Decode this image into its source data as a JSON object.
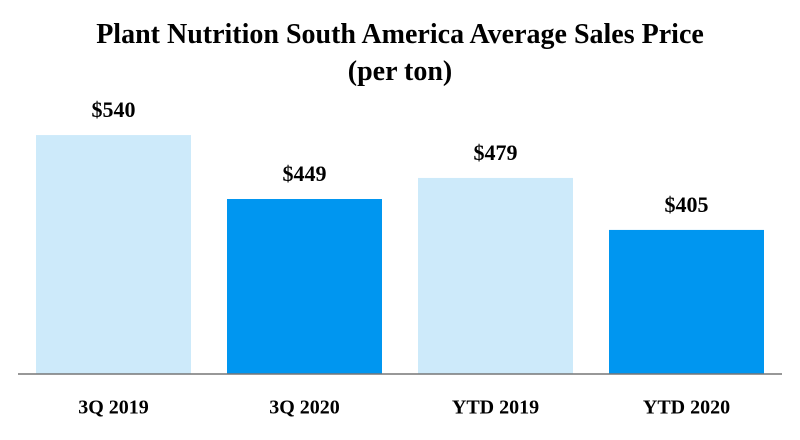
{
  "chart_data": {
    "type": "bar",
    "title": "Plant Nutrition South America Average Sales Price (per ton)",
    "categories": [
      "3Q 2019",
      "3Q 2020",
      "YTD 2019",
      "YTD 2020"
    ],
    "values": [
      540,
      449,
      479,
      405
    ],
    "value_labels": [
      "$540",
      "$449",
      "$479",
      "$405"
    ],
    "colors": [
      "#cdeafa",
      "#0096f0",
      "#cdeafa",
      "#0096f0"
    ],
    "ylim": [
      200,
      560
    ]
  }
}
